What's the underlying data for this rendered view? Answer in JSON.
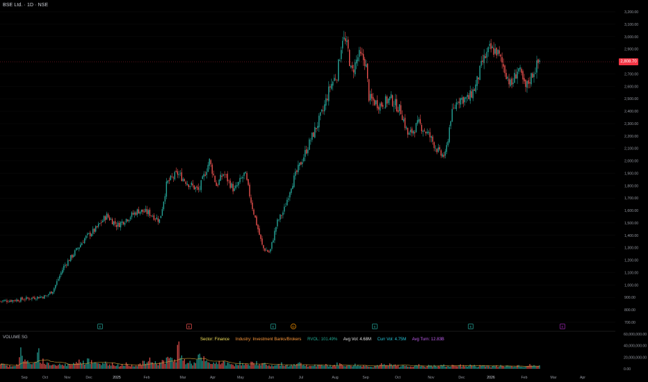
{
  "header": {
    "symbol": "BSE Ltd. · 1D · NSE"
  },
  "volume_label": "VOLUME SG",
  "last_price": {
    "value": 2808.7,
    "label": "2,808.70"
  },
  "info_bar": {
    "sector": "Sector: Finance",
    "industry": "Industry: Investment Banks/Brokers",
    "rvol": "RVOL: 101.49%",
    "avg_vol": "Avg Vol: 4.68M",
    "curr_vol": "Curr Vol: 4.75M",
    "avg_turn": "Avg Turn: 12.83B"
  },
  "price_axis": {
    "labels": [
      "3,200.00",
      "3,100.00",
      "3,000.00",
      "2,900.00",
      "2,700.00",
      "2,600.00",
      "2,500.00",
      "2,400.00",
      "2,300.00",
      "2,200.00",
      "2,100.00",
      "2,000.00",
      "1,900.00",
      "1,800.00",
      "1,700.00",
      "1,600.00",
      "1,500.00",
      "1,400.00",
      "1,300.00",
      "1,200.00",
      "1,100.00",
      "1,000.00",
      "900.00",
      "800.00",
      "700.00"
    ],
    "values": [
      3200,
      3100,
      3000,
      2900,
      2700,
      2600,
      2500,
      2400,
      2300,
      2200,
      2100,
      2000,
      1900,
      1800,
      1700,
      1600,
      1500,
      1400,
      1300,
      1200,
      1100,
      1000,
      900,
      800,
      700
    ]
  },
  "volume_axis": {
    "labels": [
      "60,000,000.00",
      "40,000,000.00",
      "20,000,000.00",
      "0.00"
    ],
    "values": [
      60000000,
      40000000,
      20000000,
      0
    ]
  },
  "time_axis": [
    "Sep",
    "Oct",
    "Nov",
    "Dec",
    "2025",
    "Feb",
    "Mar",
    "Apr",
    "May",
    "Jun",
    "Jul",
    "Aug",
    "Sep",
    "Oct",
    "Nov",
    "Dec",
    "2026",
    "Feb",
    "Mar",
    "Apr"
  ],
  "event_markers": [
    {
      "label": "E",
      "type": "earnings"
    },
    {
      "label": "E",
      "type": "earnings-red"
    },
    {
      "label": "E",
      "type": "earnings"
    },
    {
      "label": "D",
      "type": "dividend"
    },
    {
      "label": "E",
      "type": "earnings"
    },
    {
      "label": "E",
      "type": "earnings"
    },
    {
      "label": "E",
      "type": "upcoming"
    }
  ],
  "colors": {
    "up": "#26a69a",
    "down": "#ef5350",
    "background": "#000000",
    "last_price_line": "#f23645"
  },
  "chart_data": {
    "type": "candlestick",
    "title": "BSE Ltd. · 1D · NSE",
    "price_ylim": [
      700,
      3200
    ],
    "volume_ylim": [
      0,
      60000000
    ],
    "x_range": [
      "Aug 2024",
      "Apr 2026"
    ],
    "price_path": [
      [
        0,
        870
      ],
      [
        5,
        880
      ],
      [
        10,
        900
      ],
      [
        13,
        910
      ],
      [
        15,
        960
      ],
      [
        18,
        1150
      ],
      [
        21,
        1260
      ],
      [
        24,
        1380
      ],
      [
        27,
        1450
      ],
      [
        30,
        1560
      ],
      [
        33,
        1480
      ],
      [
        36,
        1540
      ],
      [
        39,
        1600
      ],
      [
        42,
        1580
      ],
      [
        45,
        1520
      ],
      [
        47,
        1820
      ],
      [
        50,
        1900
      ],
      [
        53,
        1820
      ],
      [
        56,
        1760
      ],
      [
        59,
        2000
      ],
      [
        61,
        1800
      ],
      [
        63,
        1900
      ],
      [
        66,
        1760
      ],
      [
        69,
        1900
      ],
      [
        71,
        1640
      ],
      [
        74,
        1300
      ],
      [
        76,
        1260
      ],
      [
        78,
        1500
      ],
      [
        80,
        1600
      ],
      [
        82,
        1800
      ],
      [
        85,
        2000
      ],
      [
        88,
        2200
      ],
      [
        91,
        2400
      ],
      [
        93,
        2600
      ],
      [
        95,
        2700
      ],
      [
        96.5,
        3000
      ],
      [
        98,
        2900
      ],
      [
        99,
        2700
      ],
      [
        101,
        2850
      ],
      [
        103,
        2800
      ],
      [
        104,
        2500
      ],
      [
        107,
        2450
      ],
      [
        110,
        2500
      ],
      [
        113,
        2400
      ],
      [
        115,
        2200
      ],
      [
        118,
        2300
      ],
      [
        121,
        2200
      ],
      [
        124,
        2050
      ],
      [
        125.5,
        2040
      ],
      [
        127,
        2350
      ],
      [
        129,
        2500
      ],
      [
        132,
        2500
      ],
      [
        134,
        2600
      ],
      [
        136,
        2800
      ],
      [
        138,
        2900
      ],
      [
        140,
        2880
      ],
      [
        142,
        2750
      ],
      [
        144,
        2600
      ],
      [
        146,
        2750
      ],
      [
        148,
        2580
      ],
      [
        150,
        2700
      ],
      [
        152,
        2808.7
      ]
    ],
    "volume_series": [
      8,
      6,
      5,
      5,
      6,
      7,
      30,
      18,
      12,
      11,
      10,
      9,
      26,
      14,
      10,
      9,
      8,
      7,
      6,
      8,
      6,
      7,
      10,
      8,
      12,
      16,
      14,
      10,
      18,
      12,
      9,
      8,
      7,
      14,
      10,
      9,
      8,
      7,
      6,
      7,
      8,
      6,
      7,
      6,
      7,
      8,
      10,
      12,
      14,
      12,
      10,
      10,
      12,
      14,
      18,
      16,
      15,
      40,
      20,
      14,
      12,
      10,
      9,
      14,
      20,
      16,
      12,
      10,
      9,
      8,
      12,
      11,
      10,
      9,
      8,
      7,
      9,
      10,
      8,
      7,
      6,
      9,
      11,
      10,
      9,
      8,
      7,
      6,
      5,
      6,
      7,
      8,
      6,
      5,
      7,
      9,
      10,
      8,
      7,
      6,
      5,
      6,
      5,
      5,
      6,
      7,
      6,
      5,
      6,
      8,
      7,
      6,
      5,
      6,
      7,
      6,
      5,
      6,
      5,
      5,
      4,
      5,
      6,
      7,
      6,
      5,
      8,
      6,
      5,
      4,
      5,
      6,
      5,
      4,
      5,
      6,
      5,
      4,
      5,
      6,
      5,
      4,
      5,
      6,
      5,
      4,
      5,
      6,
      7,
      5,
      4,
      5,
      6,
      5,
      4,
      5,
      6,
      5,
      4,
      5,
      6,
      5,
      4,
      5,
      5,
      4,
      5,
      6,
      5,
      4,
      5,
      6,
      5,
      4,
      6
    ]
  }
}
